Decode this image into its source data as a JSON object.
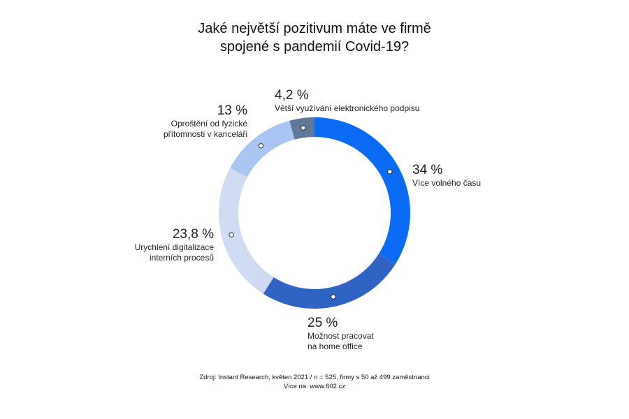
{
  "title": {
    "line1": "Jaké největší pozitivum máte ve firmě",
    "line2": "spojené s pandemií Covid-19?"
  },
  "chart_data": {
    "type": "pie",
    "donut": true,
    "title": "Jaké největší pozitivum máte ve firmě spojené s pandemií Covid-19?",
    "slices": [
      {
        "label_lines": [
          "Více volného času"
        ],
        "value_label": "34 %",
        "value": 34,
        "color": "#0a6cf5"
      },
      {
        "label_lines": [
          "Možnost pracovat",
          "na home office"
        ],
        "value_label": "25 %",
        "value": 25,
        "color": "#2f64c4"
      },
      {
        "label_lines": [
          "Urychlení digitalizace",
          "interních procesů"
        ],
        "value_label": "23,8 %",
        "value": 23.8,
        "color": "#cfdcf3"
      },
      {
        "label_lines": [
          "Oproštění od fyzické",
          "přítomnosti v kanceláři"
        ],
        "value_label": "13 %",
        "value": 13,
        "color": "#a9c6f2"
      },
      {
        "label_lines": [
          "Větší využívání elektronického podpisu"
        ],
        "value_label": "4,2 %",
        "value": 4.2,
        "color": "#5e7899"
      }
    ]
  },
  "source": {
    "line1": "Zdroj: Instant Research, květen 2021 / n = 525, firmy s 50 až 499 zaměstnanci",
    "line2": "Více na: www.602.cz"
  }
}
